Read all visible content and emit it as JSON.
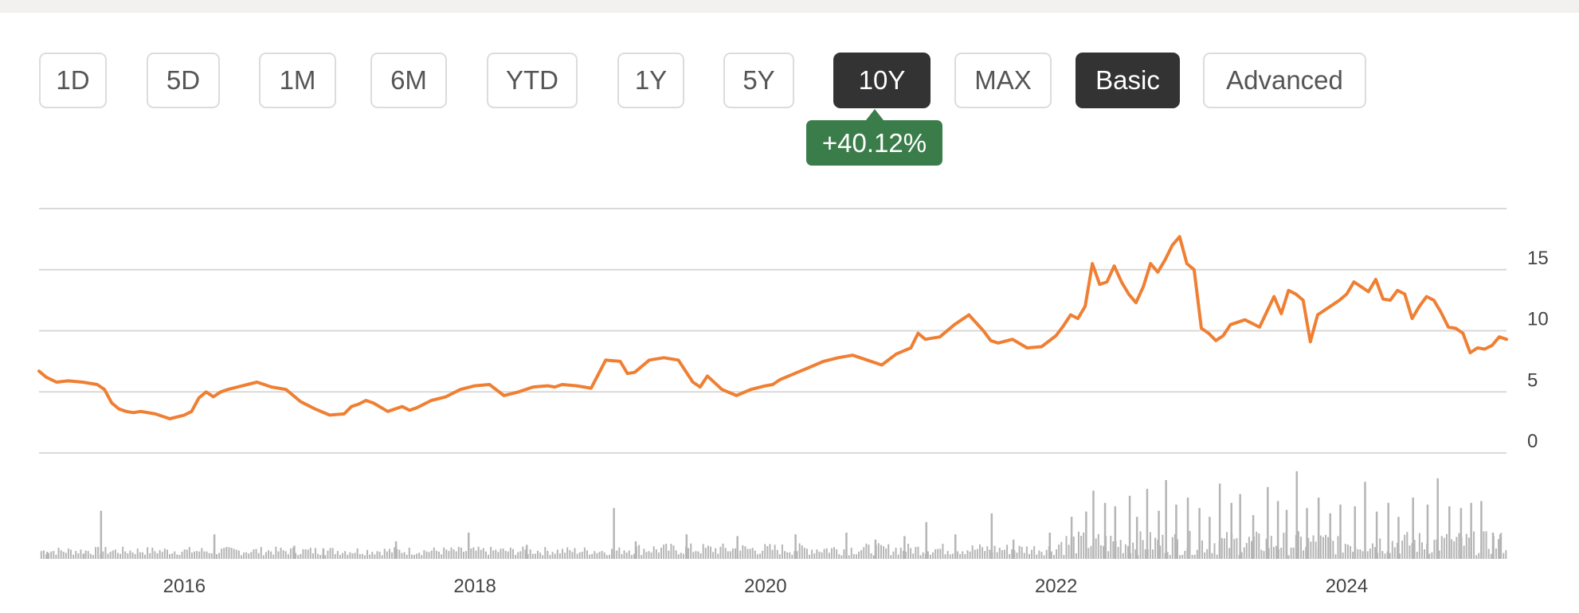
{
  "range_buttons": [
    {
      "label": "1D",
      "active": false
    },
    {
      "label": "5D",
      "active": false
    },
    {
      "label": "1M",
      "active": false
    },
    {
      "label": "6M",
      "active": false
    },
    {
      "label": "YTD",
      "active": false
    },
    {
      "label": "1Y",
      "active": false
    },
    {
      "label": "5Y",
      "active": false
    },
    {
      "label": "10Y",
      "active": true
    },
    {
      "label": "MAX",
      "active": false
    }
  ],
  "mode_buttons": [
    {
      "label": "Basic",
      "active": true
    },
    {
      "label": "Advanced",
      "active": false
    }
  ],
  "change_badge": "+40.12%",
  "colors": {
    "line": "#ef7f32",
    "volume": "#b5b5b5",
    "grid": "#d9d9d9",
    "badge": "#3a7d4a",
    "active_button": "#333333"
  },
  "chart_data": {
    "type": "line",
    "title": "",
    "xlabel": "",
    "ylabel": "",
    "x_range": [
      2015.0,
      2025.1
    ],
    "ylim": [
      0,
      20
    ],
    "y_ticks": [
      0,
      5,
      10,
      15
    ],
    "x_ticks": [
      2016,
      2018,
      2020,
      2022,
      2024
    ],
    "grid": true,
    "series": [
      {
        "x": [
          2015.0,
          2015.05,
          2015.12,
          2015.2,
          2015.3,
          2015.4,
          2015.45,
          2015.5,
          2015.55,
          2015.6,
          2015.65,
          2015.7,
          2015.8,
          2015.9,
          2016.0,
          2016.05,
          2016.1,
          2016.15,
          2016.2,
          2016.25,
          2016.3,
          2016.4,
          2016.5,
          2016.6,
          2016.7,
          2016.8,
          2016.9,
          2017.0,
          2017.1,
          2017.15,
          2017.2,
          2017.25,
          2017.3,
          2017.4,
          2017.5,
          2017.55,
          2017.6,
          2017.7,
          2017.8,
          2017.9,
          2018.0,
          2018.1,
          2018.2,
          2018.3,
          2018.4,
          2018.5,
          2018.55,
          2018.6,
          2018.7,
          2018.8,
          2018.9,
          2019.0,
          2019.05,
          2019.1,
          2019.2,
          2019.3,
          2019.4,
          2019.5,
          2019.55,
          2019.6,
          2019.7,
          2019.8,
          2019.9,
          2020.0,
          2020.05,
          2020.1,
          2020.2,
          2020.3,
          2020.4,
          2020.5,
          2020.6,
          2020.7,
          2020.8,
          2020.9,
          2021.0,
          2021.05,
          2021.1,
          2021.2,
          2021.3,
          2021.4,
          2021.5,
          2021.55,
          2021.6,
          2021.7,
          2021.8,
          2021.9,
          2022.0,
          2022.05,
          2022.1,
          2022.15,
          2022.2,
          2022.25,
          2022.3,
          2022.35,
          2022.4,
          2022.45,
          2022.5,
          2022.55,
          2022.6,
          2022.65,
          2022.7,
          2022.75,
          2022.8,
          2022.85,
          2022.9,
          2022.95,
          2023.0,
          2023.05,
          2023.1,
          2023.15,
          2023.2,
          2023.3,
          2023.4,
          2023.5,
          2023.55,
          2023.6,
          2023.65,
          2023.7,
          2023.75,
          2023.8,
          2023.85,
          2023.9,
          2023.95,
          2024.0,
          2024.05,
          2024.1,
          2024.15,
          2024.2,
          2024.25,
          2024.3,
          2024.35,
          2024.4,
          2024.45,
          2024.5,
          2024.55,
          2024.6,
          2024.65,
          2024.7,
          2024.75,
          2024.8,
          2024.85,
          2024.9,
          2024.95,
          2025.0,
          2025.05,
          2025.1
        ],
        "y": [
          6.7,
          6.2,
          5.8,
          5.9,
          5.8,
          5.6,
          5.2,
          4.1,
          3.6,
          3.4,
          3.3,
          3.4,
          3.2,
          2.8,
          3.1,
          3.4,
          4.5,
          5.0,
          4.6,
          5.0,
          5.2,
          5.5,
          5.8,
          5.4,
          5.2,
          4.2,
          3.6,
          3.1,
          3.2,
          3.8,
          4.0,
          4.3,
          4.1,
          3.4,
          3.8,
          3.5,
          3.7,
          4.3,
          4.6,
          5.2,
          5.5,
          5.6,
          4.7,
          5.0,
          5.4,
          5.5,
          5.4,
          5.6,
          5.5,
          5.3,
          7.6,
          7.5,
          6.5,
          6.6,
          7.6,
          7.8,
          7.6,
          5.8,
          5.4,
          6.3,
          5.2,
          4.7,
          5.2,
          5.5,
          5.6,
          6.0,
          6.5,
          7.0,
          7.5,
          7.8,
          8.0,
          7.6,
          7.2,
          8.1,
          8.6,
          9.8,
          9.3,
          9.5,
          10.5,
          11.3,
          10.0,
          9.2,
          9.0,
          9.3,
          8.6,
          8.7,
          9.6,
          10.4,
          11.3,
          11.0,
          12.0,
          15.5,
          13.8,
          14.0,
          15.3,
          14.0,
          13.0,
          12.3,
          13.6,
          15.5,
          14.8,
          15.8,
          17.0,
          17.7,
          15.5,
          15.0,
          10.2,
          9.8,
          9.2,
          9.6,
          10.5,
          10.9,
          10.3,
          12.8,
          11.4,
          13.3,
          13.0,
          12.5,
          9.1,
          11.3,
          11.7,
          12.1,
          12.5,
          13.0,
          14.0,
          13.6,
          13.2,
          14.2,
          12.6,
          12.5,
          13.3,
          13.0,
          11.0,
          12.0,
          12.8,
          12.5,
          11.5,
          10.3,
          10.2,
          9.8,
          8.2,
          8.6,
          8.5,
          8.8,
          9.5,
          9.3
        ]
      }
    ],
    "volume": {
      "type": "bar",
      "ylim": [
        0,
        100
      ],
      "x": [
        2015.05,
        2015.3,
        2015.42,
        2016.2,
        2016.75,
        2016.95,
        2017.45,
        2017.95,
        2018.35,
        2018.95,
        2019.1,
        2019.45,
        2019.8,
        2020.2,
        2020.55,
        2020.75,
        2020.95,
        2021.1,
        2021.3,
        2021.55,
        2021.7,
        2021.95,
        2022.1,
        2022.2,
        2022.25,
        2022.33,
        2022.4,
        2022.5,
        2022.55,
        2022.62,
        2022.7,
        2022.75,
        2022.82,
        2022.9,
        2022.98,
        2023.05,
        2023.12,
        2023.2,
        2023.26,
        2023.35,
        2023.45,
        2023.52,
        2023.58,
        2023.65,
        2023.72,
        2023.8,
        2023.88,
        2023.95,
        2024.05,
        2024.12,
        2024.2,
        2024.28,
        2024.35,
        2024.45,
        2024.55,
        2024.62,
        2024.7,
        2024.78,
        2024.85,
        2024.92,
        2025.0,
        2025.05
      ],
      "values": [
        8,
        6,
        55,
        28,
        15,
        12,
        20,
        30,
        16,
        58,
        20,
        28,
        26,
        28,
        30,
        22,
        26,
        42,
        28,
        52,
        22,
        30,
        48,
        54,
        78,
        64,
        60,
        72,
        48,
        80,
        55,
        90,
        62,
        70,
        58,
        48,
        86,
        64,
        74,
        50,
        82,
        66,
        56,
        100,
        58,
        70,
        52,
        62,
        60,
        88,
        54,
        64,
        48,
        70,
        62,
        92,
        60,
        58,
        64,
        66,
        30,
        28
      ]
    }
  }
}
